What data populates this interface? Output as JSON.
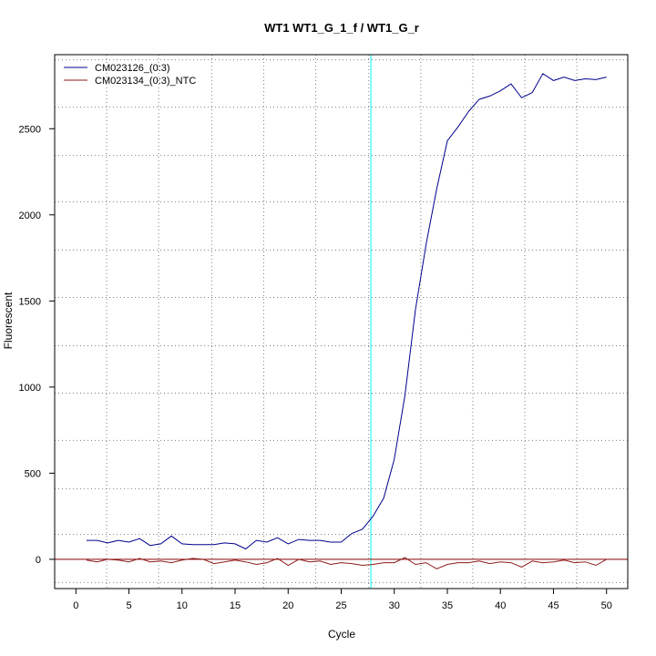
{
  "chart_data": {
    "type": "line",
    "title": "WT1  WT1_G_1_f / WT1_G_r",
    "xlabel": "Cycle",
    "ylabel": "Fluorescent",
    "xlim": [
      -2,
      52
    ],
    "ylim": [
      -170,
      2930
    ],
    "x_ticks": [
      0,
      5,
      10,
      15,
      20,
      25,
      30,
      35,
      40,
      45,
      50
    ],
    "y_ticks": [
      0,
      500,
      1000,
      1500,
      2000,
      2500
    ],
    "x_tick_labels": [
      "0",
      "5",
      "10",
      "15",
      "20",
      "25",
      "30",
      "35",
      "40",
      "45",
      "50"
    ],
    "y_tick_labels": [
      "0",
      "500",
      "1000",
      "1500",
      "2000",
      "2500"
    ],
    "grid": true,
    "grid_style": "dotted",
    "v_grid_x": [
      2.9,
      7.8,
      12.8,
      17.7,
      22.6,
      27.6,
      32.5,
      37.4,
      42.3,
      47.2
    ],
    "h_grid_y": [
      -135,
      145,
      410,
      690,
      965,
      1240,
      1520,
      1795,
      2075,
      2345,
      2625,
      2900
    ],
    "legend_position": "top-left",
    "threshold": {
      "x": 27.8,
      "color": "#00ffff"
    },
    "baseline": {
      "y": 0,
      "color": "#8b0000"
    },
    "series": [
      {
        "name": "CM023126_(0:3)",
        "color": "#00008b",
        "x": [
          1,
          2,
          3,
          4,
          5,
          6,
          7,
          8,
          9,
          10,
          11,
          12,
          13,
          14,
          15,
          16,
          17,
          18,
          19,
          20,
          21,
          22,
          23,
          24,
          25,
          26,
          27,
          28,
          29,
          30,
          31,
          32,
          33,
          34,
          35,
          36,
          37,
          38,
          39,
          40,
          41,
          42,
          43,
          44,
          45,
          46,
          47,
          48,
          49,
          50
        ],
        "y": [
          110,
          110,
          95,
          110,
          100,
          120,
          80,
          90,
          135,
          90,
          85,
          85,
          85,
          95,
          90,
          60,
          110,
          100,
          125,
          90,
          115,
          110,
          110,
          100,
          100,
          150,
          175,
          250,
          355,
          580,
          950,
          1450,
          1830,
          2150,
          2430,
          2510,
          2600,
          2670,
          2690,
          2720,
          2760,
          2680,
          2710,
          2820,
          2780,
          2800,
          2780,
          2790,
          2785,
          2800
        ]
      },
      {
        "name": "CM023134_(0:3)_NTC",
        "color": "#8b1a1a",
        "x": [
          1,
          2,
          3,
          4,
          5,
          6,
          7,
          8,
          9,
          10,
          11,
          12,
          13,
          14,
          15,
          16,
          17,
          18,
          19,
          20,
          21,
          22,
          23,
          24,
          25,
          26,
          27,
          28,
          29,
          30,
          31,
          32,
          33,
          34,
          35,
          36,
          37,
          38,
          39,
          40,
          41,
          42,
          43,
          44,
          45,
          46,
          47,
          48,
          49,
          50
        ],
        "y": [
          -5,
          -15,
          0,
          -5,
          -15,
          5,
          -15,
          -10,
          -20,
          -5,
          5,
          0,
          -25,
          -15,
          -5,
          -15,
          -30,
          -20,
          5,
          -35,
          0,
          -15,
          -10,
          -30,
          -20,
          -25,
          -35,
          -30,
          -20,
          -20,
          10,
          -30,
          -20,
          -55,
          -30,
          -20,
          -20,
          -10,
          -25,
          -15,
          -20,
          -45,
          -10,
          -20,
          -15,
          -5,
          -20,
          -15,
          -35,
          0
        ]
      }
    ]
  }
}
